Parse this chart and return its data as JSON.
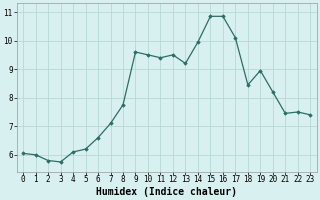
{
  "x": [
    0,
    1,
    2,
    3,
    4,
    5,
    6,
    7,
    8,
    9,
    10,
    11,
    12,
    13,
    14,
    15,
    16,
    17,
    18,
    19,
    20,
    21,
    22,
    23
  ],
  "y": [
    6.05,
    6.0,
    5.8,
    5.75,
    6.1,
    6.2,
    6.6,
    7.1,
    7.75,
    9.6,
    9.5,
    9.4,
    9.5,
    9.2,
    9.95,
    10.85,
    10.85,
    10.1,
    8.45,
    8.95,
    8.2,
    7.45,
    7.5,
    7.4
  ],
  "line_color": "#2d6e63",
  "marker": "D",
  "marker_size": 1.8,
  "bg_color": "#d8f0f0",
  "grid_color": "#b8d8d4",
  "xlabel": "Humidex (Indice chaleur)",
  "tick_fontsize": 5.5,
  "xlabel_fontsize": 7.0,
  "ylim": [
    5.4,
    11.3
  ],
  "xlim": [
    -0.5,
    23.5
  ],
  "yticks": [
    6,
    7,
    8,
    9,
    10,
    11
  ],
  "xticks": [
    0,
    1,
    2,
    3,
    4,
    5,
    6,
    7,
    8,
    9,
    10,
    11,
    12,
    13,
    14,
    15,
    16,
    17,
    18,
    19,
    20,
    21,
    22,
    23
  ]
}
